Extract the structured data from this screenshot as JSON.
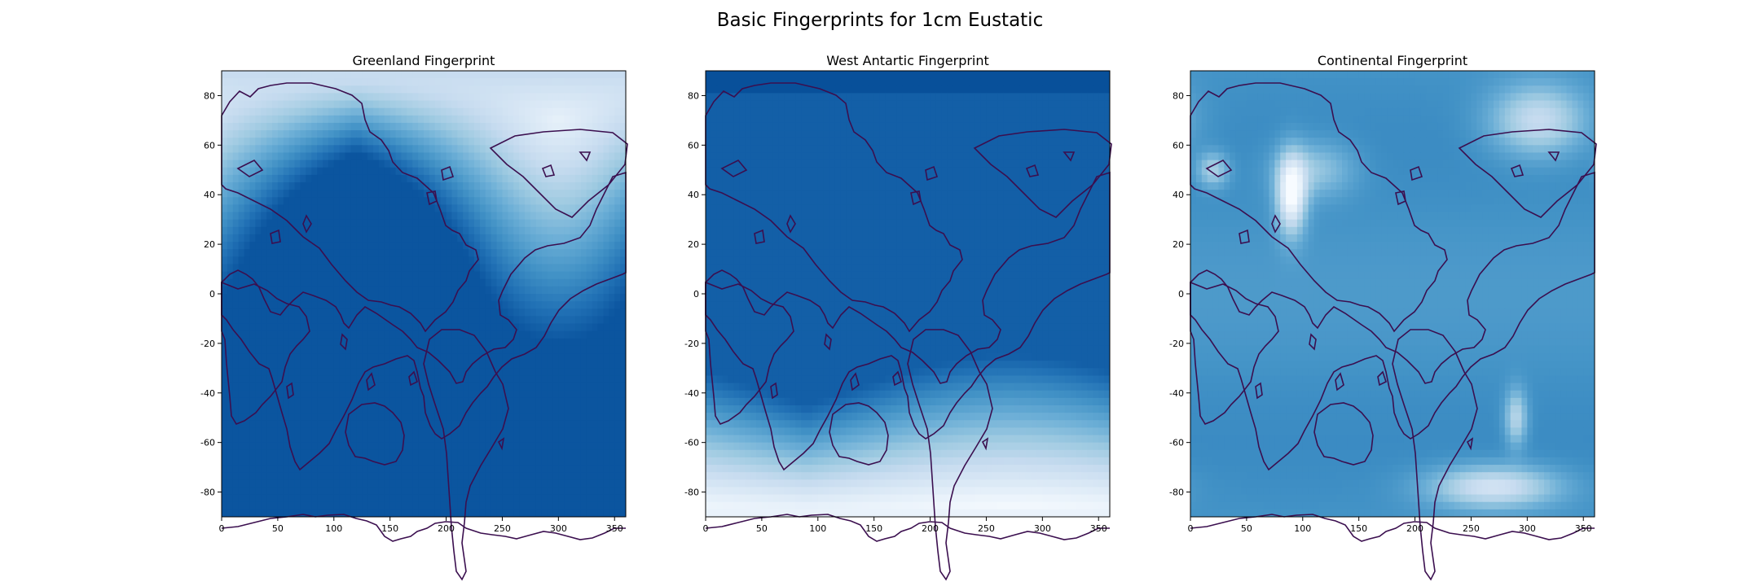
{
  "figure": {
    "title": "Basic Fingerprints for 1cm Eustatic"
  },
  "colors": {
    "colormap": "Blues",
    "coastline": "#3b0f4f",
    "axes": "#000000"
  },
  "chart_data": [
    {
      "type": "heatmap",
      "title": "Greenland Fingerprint",
      "xlim": [
        0,
        360
      ],
      "ylim": [
        -90,
        90
      ],
      "xticks": [
        0,
        50,
        100,
        150,
        200,
        250,
        300,
        350
      ],
      "yticks": [
        80,
        60,
        40,
        20,
        0,
        -20,
        -40,
        -60,
        -80
      ],
      "grid": false,
      "pattern": "low near Greenland source (~300E, 70N), increasing toward south; darkest near Antarctica",
      "overlay": "continent coastlines"
    },
    {
      "type": "heatmap",
      "title": "West Antartic Fingerprint",
      "xlim": [
        0,
        360
      ],
      "ylim": [
        -90,
        90
      ],
      "xticks": [
        0,
        50,
        100,
        150,
        200,
        250,
        300,
        350
      ],
      "yticks": [
        80,
        60,
        40,
        20,
        0,
        -20,
        -40,
        -60,
        -80
      ],
      "grid": false,
      "pattern": "low near West Antarctic source (~270E, 80S), increasing northward; darkest near north pole",
      "overlay": "continent coastlines"
    },
    {
      "type": "heatmap",
      "title": "Continental Fingerprint",
      "xlim": [
        0,
        360
      ],
      "ylim": [
        -90,
        90
      ],
      "xticks": [
        0,
        50,
        100,
        150,
        200,
        250,
        300,
        350
      ],
      "yticks": [
        80,
        60,
        40,
        20,
        0,
        -20,
        -40,
        -60,
        -80
      ],
      "grid": false,
      "pattern": "mostly uniform medium blue with low patches over Central Asia, Greenland, Patagonia and West Antarctica",
      "overlay": "continent coastlines"
    }
  ]
}
